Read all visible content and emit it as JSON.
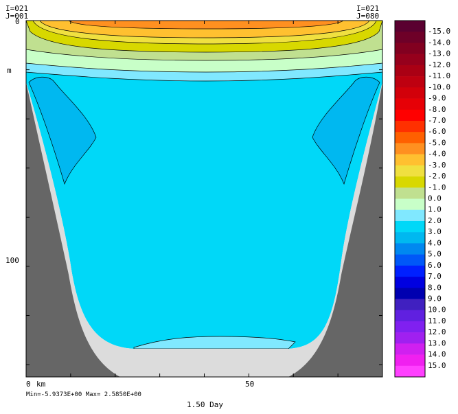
{
  "chart_data": {
    "type": "heatmap",
    "subtype": "filled-contour-section",
    "corner_labels": {
      "top_left": [
        "I=021",
        "J=001"
      ],
      "top_right": [
        "I=021",
        "J=080"
      ]
    },
    "y_axis": {
      "unit_label": "m",
      "ticks": [
        0,
        100
      ],
      "range": [
        0,
        145
      ],
      "inverted": true
    },
    "x_axis": {
      "unit_label": "km",
      "ticks": [
        0,
        50
      ],
      "range": [
        0,
        80
      ]
    },
    "minmax_text": "Min=-5.9373E+00  Max= 2.5850E+00",
    "time_label": "1.50 Day",
    "colorbar": {
      "levels": [
        "-15.0",
        "-14.0",
        "-13.0",
        "-12.0",
        "-11.0",
        "-10.0",
        "-9.0",
        "-8.0",
        "-7.0",
        "-6.0",
        "-5.0",
        "-4.0",
        "-3.0",
        "-2.0",
        "-1.0",
        "0.0",
        "1.0",
        "2.0",
        "3.0",
        "4.0",
        "5.0",
        "6.0",
        "7.0",
        "8.0",
        "9.0",
        "10.0",
        "11.0",
        "12.0",
        "13.0",
        "14.0",
        "15.0"
      ],
      "colors": [
        "#5a0030",
        "#6e0028",
        "#820020",
        "#96001c",
        "#aa0014",
        "#be0010",
        "#d2000a",
        "#e60006",
        "#ff0000",
        "#ff3000",
        "#ff6000",
        "#ff9020",
        "#ffc030",
        "#f0e040",
        "#d8d800",
        "#c0e090",
        "#c8ffc8",
        "#80e8ff",
        "#00d8f8",
        "#00b8f0",
        "#0088f0",
        "#0058f8",
        "#0020ff",
        "#0000e0",
        "#0000b0",
        "#4020c0",
        "#6020e0",
        "#8020f0",
        "#a020f0",
        "#d020f0",
        "#f020f0",
        "#ff40ff"
      ]
    }
  }
}
